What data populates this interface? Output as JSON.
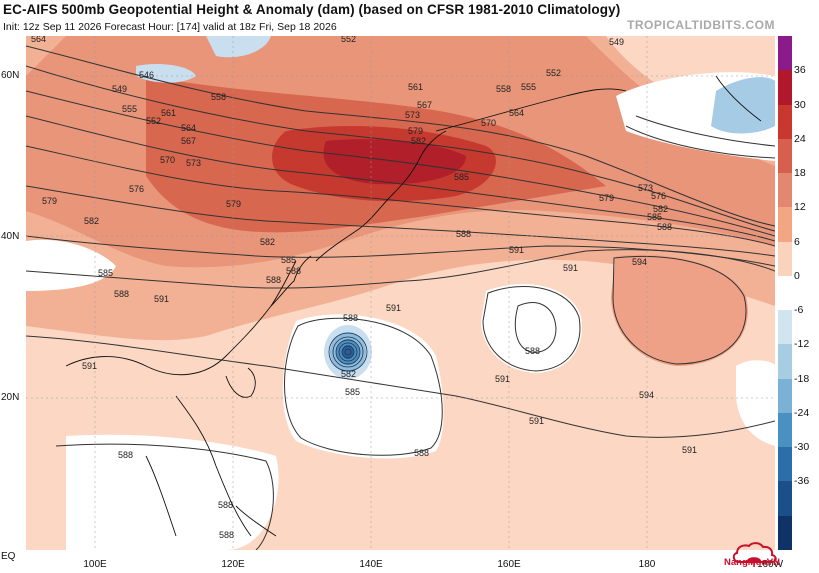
{
  "header": {
    "title": "EC-AIFS 500mb Geopotential Height & Anomaly (dam) (based on CFSR 1981-2010 Climatology)",
    "subtitle": "Init: 12z Sep 11 2026   Forecast Hour: [174]   valid at 18z Fri, Sep 18 2026",
    "brand": "TROPICALTIDBITS.COM"
  },
  "axes": {
    "lat_labels": [
      "60N",
      "40N",
      "20N",
      "EQ"
    ],
    "lon_labels": [
      "100E",
      "120E",
      "140E",
      "160E",
      "180",
      "160W"
    ]
  },
  "contours": {
    "label_values": [
      "564",
      "546",
      "549",
      "552",
      "555",
      "558",
      "561",
      "564",
      "567",
      "570",
      "573",
      "576",
      "579",
      "582",
      "585",
      "588",
      "591",
      "594"
    ],
    "cyclone_center_value": "582"
  },
  "colorbar": {
    "ticks": [
      "36",
      "30",
      "24",
      "18",
      "12",
      "6",
      "0",
      "-6",
      "-12",
      "-18",
      "-24",
      "-30",
      "-36"
    ],
    "colors": [
      "#8b1a8b",
      "#b2182b",
      "#c8382f",
      "#d6604d",
      "#e38870",
      "#f4a582",
      "#fbd3bc",
      "#ffffff",
      "#d1e5f0",
      "#a7cde3",
      "#7bb1d5",
      "#4a90c2",
      "#2b6ea8",
      "#1b4f8a",
      "#0f3366"
    ]
  },
  "watermark": {
    "text": "NangMuaVN",
    "icon": "cloud-umbrella-icon"
  },
  "colors": {
    "accent_warm": "#e38870",
    "accent_cold": "#6ba4cf",
    "land_outline": "#111111"
  }
}
